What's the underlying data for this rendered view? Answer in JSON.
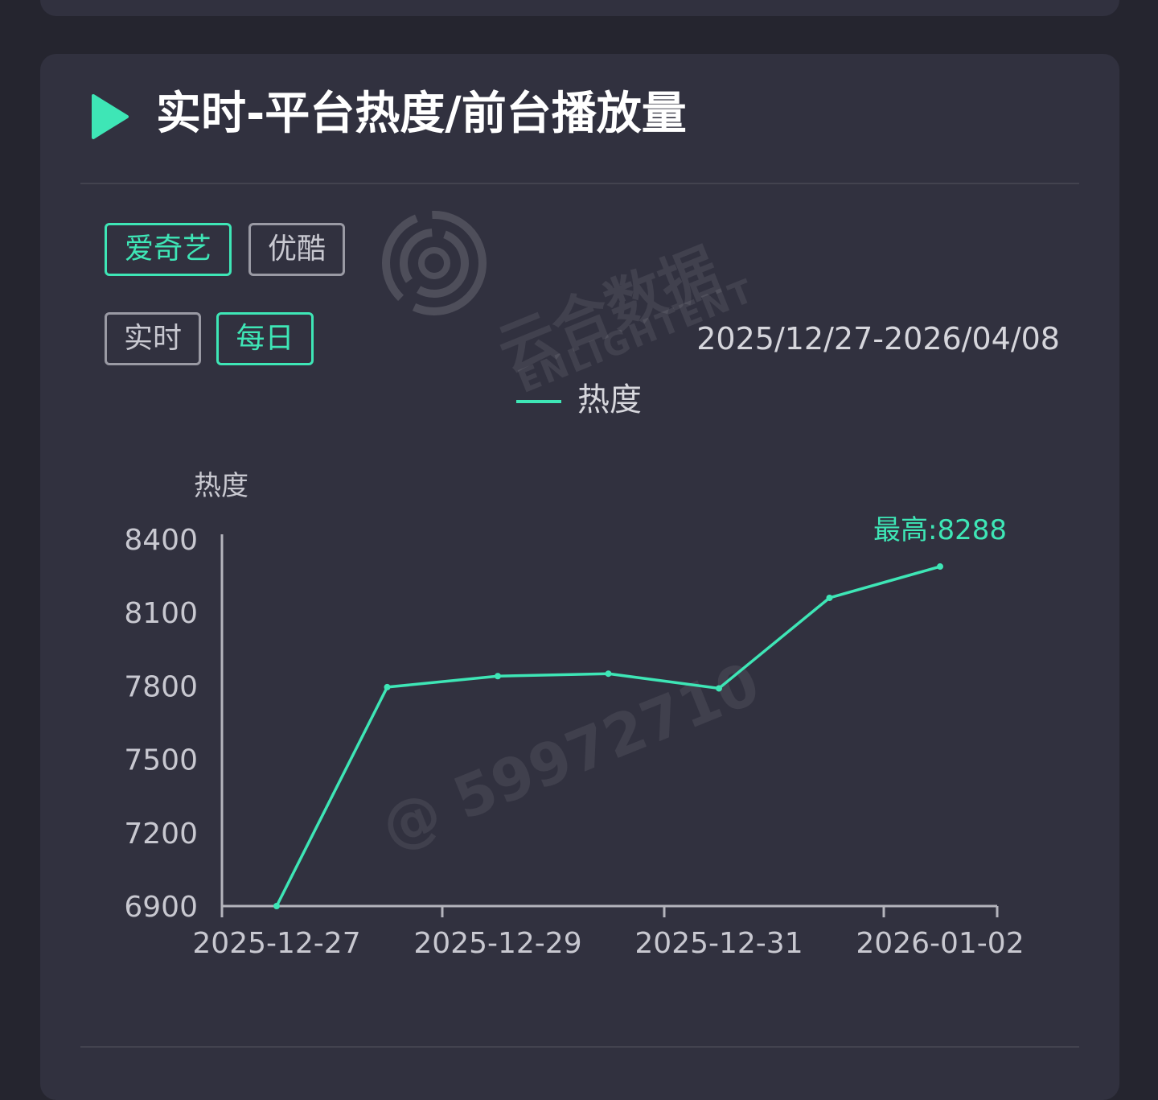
{
  "section": {
    "title": "实时-平台热度/前台播放量"
  },
  "platform_tabs": [
    {
      "label": "爱奇艺",
      "active": true
    },
    {
      "label": "优酷",
      "active": false
    }
  ],
  "period_tabs": [
    {
      "label": "实时",
      "active": false
    },
    {
      "label": "每日",
      "active": true
    }
  ],
  "date_range": "2025/12/27-2026/04/08",
  "watermark": {
    "brand": "云合数据",
    "brand_en": "ENLIGHTENT",
    "id_text": "@ 59972710"
  },
  "colors": {
    "accent": "#3ee6b6",
    "card_bg": "#31313f",
    "page_bg": "#25252f"
  },
  "chart_data": {
    "type": "line",
    "legend": [
      "热度"
    ],
    "ylabel": "热度",
    "xlabel": "",
    "x": [
      "2025-12-27",
      "2025-12-28",
      "2025-12-29",
      "2025-12-30",
      "2025-12-31",
      "2026-01-01",
      "2026-01-02"
    ],
    "x_tick_labels": [
      "2025-12-27",
      "2025-12-29",
      "2025-12-31",
      "2026-01-02"
    ],
    "series": [
      {
        "name": "热度",
        "values": [
          6900,
          7795,
          7840,
          7850,
          7790,
          8160,
          8288
        ]
      }
    ],
    "ylim": [
      6900,
      8400
    ],
    "y_ticks": [
      6900,
      7200,
      7500,
      7800,
      8100,
      8400
    ],
    "annotation": {
      "label": "最高:8288",
      "x": "2026-01-02",
      "value": 8288
    },
    "grid": false,
    "legend_position": "top-center"
  }
}
